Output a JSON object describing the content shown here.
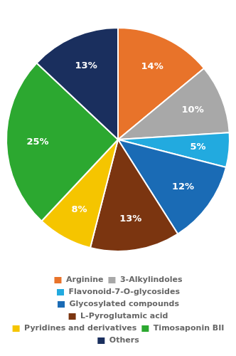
{
  "chart_data": {
    "type": "pie",
    "categories": [
      "Arginine",
      "3-Alkylindoles",
      "Flavonoid-7-O-glycosides",
      "Glycosylated compounds",
      "L-Pyroglutamic acid",
      "Pyridines and derivatives",
      "Timosaponin BII",
      "Others"
    ],
    "values": [
      14,
      10,
      5,
      12,
      13,
      8,
      25,
      13
    ],
    "value_labels": [
      "14%",
      "10%",
      "5%",
      "12%",
      "13%",
      "8%",
      "25%",
      "13%"
    ],
    "colors": [
      "#E8732A",
      "#A8A8A8",
      "#22AADF",
      "#1A6BB5",
      "#7B3510",
      "#F5C500",
      "#2CA830",
      "#1A2F5E"
    ],
    "data_labels": true,
    "legend": "bottom"
  }
}
